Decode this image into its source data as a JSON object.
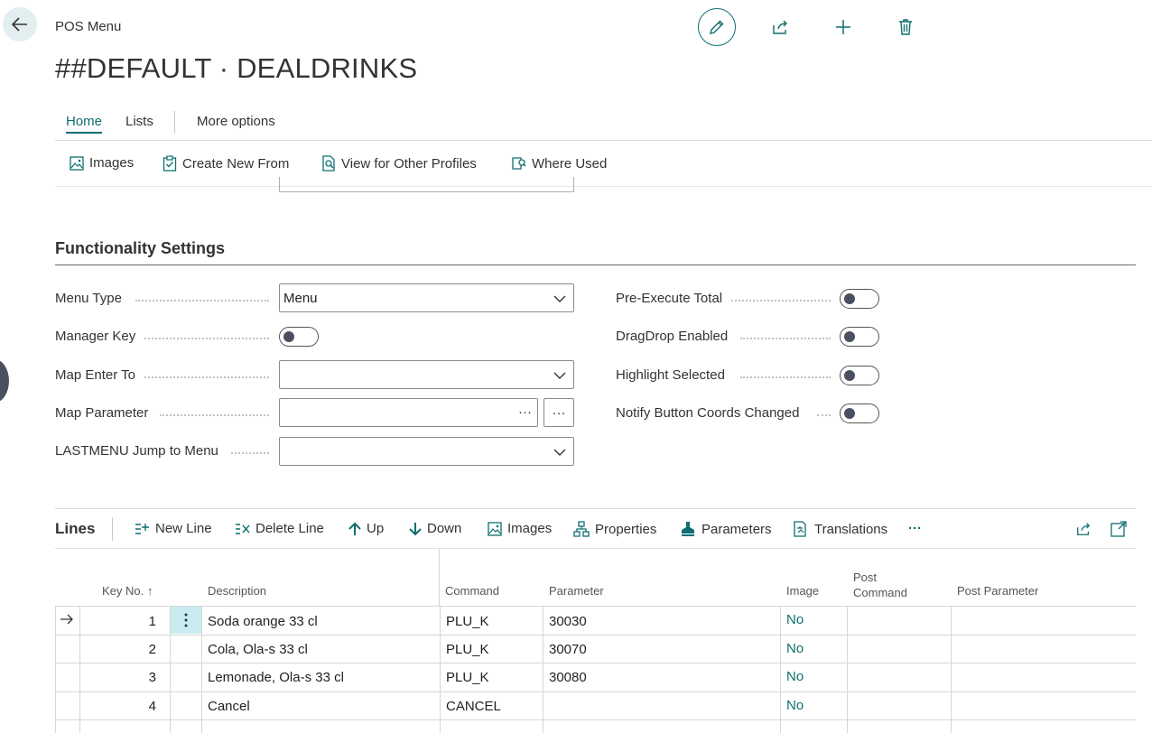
{
  "header": {
    "caption": "POS Menu",
    "title": "##DEFAULT · DEALDRINKS"
  },
  "tabs": [
    {
      "label": "Home",
      "active": true
    },
    {
      "label": "Lists",
      "active": false
    },
    {
      "label": "More options",
      "active": false
    }
  ],
  "actions": {
    "images": "Images",
    "create_new_from": "Create New From",
    "view_other_profiles": "View for Other Profiles",
    "where_used": "Where Used"
  },
  "section": {
    "title": "Functionality Settings",
    "fields": {
      "menu_type": {
        "label": "Menu Type",
        "value": "Menu"
      },
      "manager_key": {
        "label": "Manager Key",
        "value": false
      },
      "map_enter_to": {
        "label": "Map Enter To",
        "value": ""
      },
      "map_parameter": {
        "label": "Map Parameter",
        "value": "",
        "lookup_glyph": "···"
      },
      "lastmenu_jump": {
        "label": "LASTMENU Jump to Menu",
        "value": ""
      },
      "pre_execute_total": {
        "label": "Pre-Execute Total",
        "value": false
      },
      "dragdrop_enabled": {
        "label": "DragDrop Enabled",
        "value": false
      },
      "highlight_selected": {
        "label": "Highlight Selected",
        "value": false
      },
      "notify_button_coords": {
        "label": "Notify Button Coords Changed",
        "value": false
      }
    }
  },
  "lines": {
    "title": "Lines",
    "actions": {
      "new_line": "New Line",
      "delete_line": "Delete Line",
      "up": "Up",
      "down": "Down",
      "images": "Images",
      "properties": "Properties",
      "parameters": "Parameters",
      "translations": "Translations",
      "more": "···"
    },
    "columns": {
      "key_no": "Key No.",
      "key_sort": "↑",
      "description": "Description",
      "command": "Command",
      "parameter": "Parameter",
      "image": "Image",
      "post_command_1": "Post",
      "post_command_2": "Command",
      "post_parameter": "Post Parameter"
    },
    "rows": [
      {
        "key": "1",
        "description": "Soda orange 33 cl",
        "command": "PLU_K",
        "parameter": "30030",
        "image": "No"
      },
      {
        "key": "2",
        "description": "Cola, Ola-s 33 cl",
        "command": "PLU_K",
        "parameter": "30070",
        "image": "No"
      },
      {
        "key": "3",
        "description": "Lemonade, Ola-s 33 cl",
        "command": "PLU_K",
        "parameter": "30080",
        "image": "No"
      },
      {
        "key": "4",
        "description": "Cancel",
        "command": "CANCEL",
        "parameter": "",
        "image": "No"
      }
    ]
  },
  "colors": {
    "accent": "#0f6e70",
    "selected_row_menu": "#c9ecf0",
    "toggle_knob": "#4b5060"
  }
}
